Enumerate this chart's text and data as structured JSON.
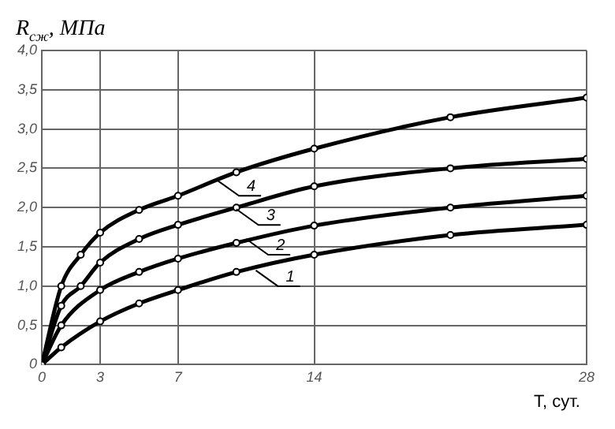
{
  "chart_data": {
    "type": "line",
    "xlabel": "T, сут.",
    "ylabel": "R$_{сж}$, МПа",
    "xlim": [
      0,
      28
    ],
    "xticks": [
      0,
      3,
      7,
      14,
      28
    ],
    "ylim": [
      0,
      4
    ],
    "yticks": [
      {
        "value": 0,
        "label": "0"
      },
      {
        "value": 0.5,
        "label": "0,5"
      },
      {
        "value": 1,
        "label": "1,0"
      },
      {
        "value": 1.5,
        "label": "1,5"
      },
      {
        "value": 2,
        "label": "2,0"
      },
      {
        "value": 2.5,
        "label": "2,5"
      },
      {
        "value": 3,
        "label": "3,0"
      },
      {
        "value": 3.5,
        "label": "3,5"
      },
      {
        "value": 4,
        "label": "4,0"
      }
    ],
    "grid": true,
    "marker": "circle",
    "line_style": "solid",
    "series": [
      {
        "color": "#000000",
        "x": [
          0,
          1,
          3,
          5,
          7,
          10,
          14,
          21,
          28
        ],
        "values": [
          0,
          0.22,
          0.55,
          0.78,
          0.95,
          1.18,
          1.4,
          1.65,
          1.78
        ]
      },
      {
        "color": "#000000",
        "x": [
          0,
          1,
          3,
          5,
          7,
          10,
          14,
          21,
          28
        ],
        "values": [
          0,
          0.5,
          0.95,
          1.18,
          1.35,
          1.55,
          1.77,
          2.0,
          2.15
        ]
      },
      {
        "color": "#000000",
        "x": [
          0,
          1,
          2,
          3,
          5,
          7,
          10,
          14,
          21,
          28
        ],
        "values": [
          0,
          0.75,
          1.0,
          1.3,
          1.6,
          1.78,
          2.0,
          2.27,
          2.5,
          2.62
        ]
      },
      {
        "color": "#000000",
        "x": [
          0,
          1,
          2,
          3,
          5,
          7,
          10,
          14,
          21,
          28
        ],
        "values": [
          0,
          1.0,
          1.4,
          1.68,
          1.97,
          2.15,
          2.45,
          2.75,
          3.15,
          3.4
        ]
      }
    ],
    "annotations": [
      {
        "text": "1",
        "x": 11,
        "y": 1.2
      },
      {
        "text": "2",
        "x": 10.5,
        "y": 1.6
      },
      {
        "text": "3",
        "x": 10,
        "y": 1.98
      },
      {
        "text": "4",
        "x": 9,
        "y": 2.35
      }
    ]
  }
}
